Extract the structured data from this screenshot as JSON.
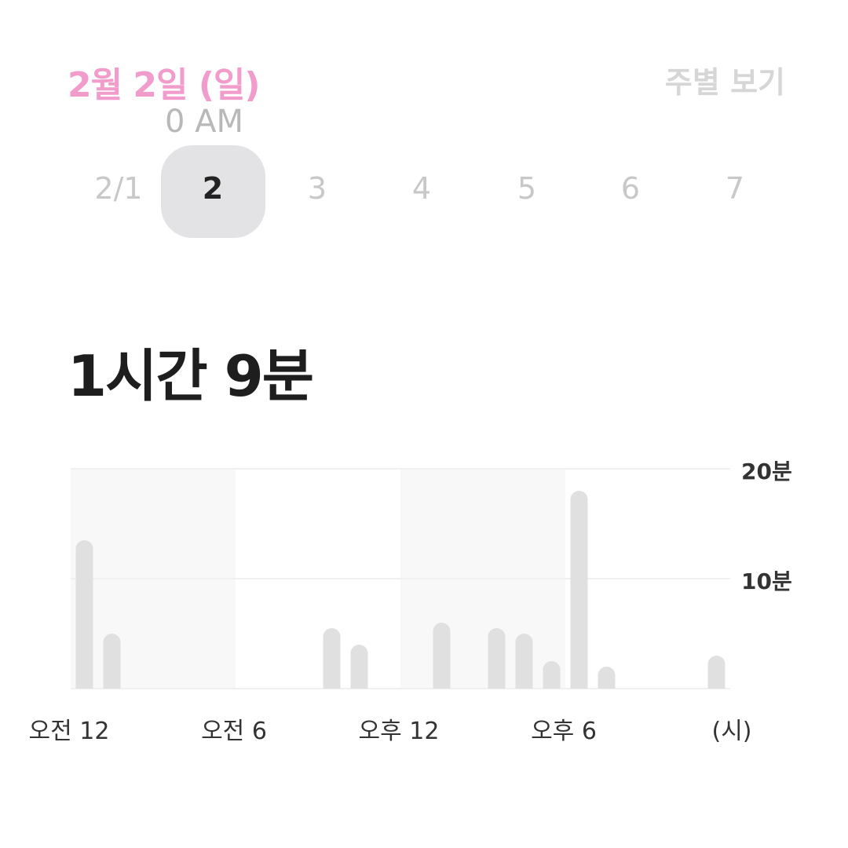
{
  "header": {
    "title": "2월 2일 (일)",
    "weekly_view": "주별 보기",
    "overlay_text": "0 AM"
  },
  "days": [
    {
      "label": "2/1"
    },
    {
      "label": "2",
      "selected": true
    },
    {
      "label": "3"
    },
    {
      "label": "4"
    },
    {
      "label": "5"
    },
    {
      "label": "6"
    },
    {
      "label": "7"
    }
  ],
  "total": "1시간 9분",
  "colors": {
    "accent": "#f19ccb",
    "bar": "#e0e0e0",
    "shade": "#f8f8f8"
  },
  "chart_data": {
    "type": "bar",
    "x": [
      0,
      1,
      9,
      10,
      13,
      15,
      16,
      17,
      18,
      19,
      23
    ],
    "values": [
      13.5,
      5,
      5.5,
      4,
      6,
      5.5,
      5,
      2.5,
      18,
      2,
      3
    ],
    "xlim": [
      0,
      24
    ],
    "ylim": [
      0,
      20
    ],
    "y_ticks": [
      {
        "value": 20,
        "label": "20분"
      },
      {
        "value": 10,
        "label": "10분"
      }
    ],
    "x_ticks": [
      {
        "value": 0,
        "label": "오전 12"
      },
      {
        "value": 6,
        "label": "오전 6"
      },
      {
        "value": 12,
        "label": "오후 12"
      },
      {
        "value": 18,
        "label": "오후 6"
      }
    ],
    "x_unit": "(시)",
    "grid": true
  }
}
